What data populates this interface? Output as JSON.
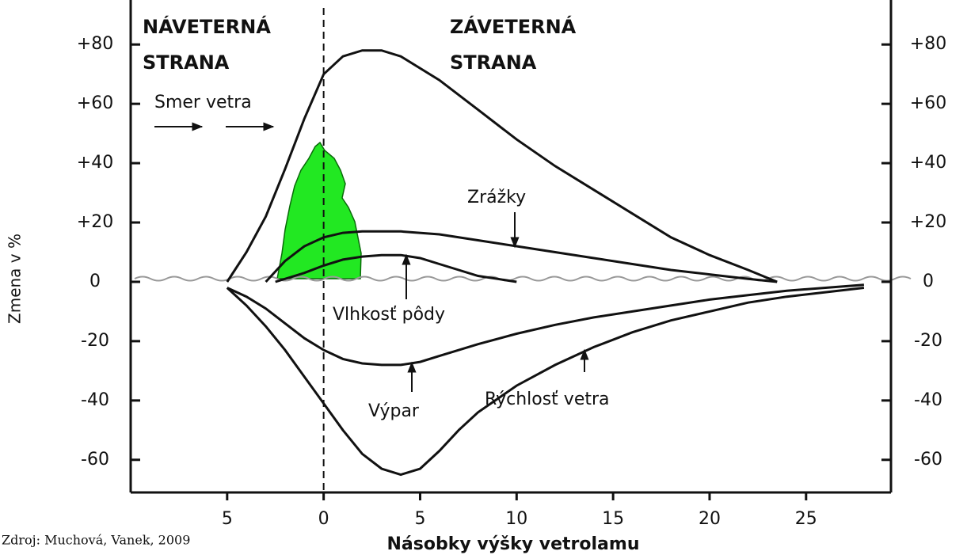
{
  "chart_data": {
    "type": "line",
    "sides": [
      [
        "NÁVETERNÁ",
        "STRANA"
      ],
      [
        "ZÁVETERNÁ",
        "STRANA"
      ]
    ],
    "annotations": [
      "Smer vetra",
      "Zrážky",
      "Vlhkosť pôdy",
      "Výpar",
      "Rýchlosť vetra"
    ],
    "y_label": "Zmena v %",
    "x_label": "Násobky výšky vetrolamu",
    "source": "Zdroj: Muchová, Vanek, 2009",
    "xlim": [
      -10,
      29.4
    ],
    "ylim": [
      -71,
      95
    ],
    "xticks": [
      {
        "value": -5,
        "label": "5"
      },
      0,
      5,
      10,
      15,
      20,
      25
    ],
    "yticks": [
      {
        "value": 80,
        "label": "+80"
      },
      {
        "value": 60,
        "label": "+60"
      },
      {
        "value": 40,
        "label": "+40"
      },
      {
        "value": 20,
        "label": "+20"
      },
      0,
      -20,
      -40,
      -60
    ],
    "y2ticks": [
      {
        "value": 80,
        "label": "+80"
      },
      {
        "value": 60,
        "label": "+60"
      },
      {
        "value": 40,
        "label": "+40"
      },
      {
        "value": 20,
        "label": "+20"
      },
      0,
      -20,
      -40,
      -60
    ],
    "series": [
      {
        "color": "#111111",
        "x": [
          -5,
          -4,
          -3,
          -2,
          -1,
          0,
          1,
          2,
          3,
          4,
          6,
          8,
          10,
          12,
          14,
          16,
          18,
          20,
          22,
          23.5
        ],
        "values": [
          0,
          10,
          22,
          38,
          55,
          70,
          76,
          78,
          78,
          76,
          68,
          58,
          48,
          39,
          31,
          23,
          15,
          9,
          4,
          0
        ]
      },
      {
        "name": "Zrážky",
        "color": "#111111",
        "x": [
          -3,
          -2,
          -1,
          0,
          1,
          2,
          4,
          6,
          8,
          10,
          12,
          14,
          16,
          18,
          20,
          22,
          23.5
        ],
        "values": [
          0,
          7,
          12,
          15,
          16.5,
          17,
          17,
          16,
          14,
          12,
          10,
          8,
          6,
          4,
          2.5,
          1,
          0
        ]
      },
      {
        "name": "Vlhkosť pôdy",
        "color": "#111111",
        "x": [
          -2.5,
          -1,
          0,
          1,
          2,
          3,
          4,
          5,
          6,
          7,
          8,
          9,
          10
        ],
        "values": [
          0,
          3,
          5.5,
          7.5,
          8.5,
          9,
          9,
          8,
          6,
          4,
          2,
          1,
          0
        ]
      },
      {
        "name": "Výpar",
        "color": "#111111",
        "x": [
          -5,
          -4,
          -3,
          -2,
          -1,
          0,
          1,
          2,
          3,
          4,
          5,
          6,
          8,
          10,
          12,
          14,
          16,
          18,
          20,
          22,
          24,
          26,
          28
        ],
        "values": [
          -2,
          -5,
          -9,
          -14,
          -19,
          -23,
          -26,
          -27.5,
          -28,
          -28,
          -27,
          -25,
          -21,
          -17.5,
          -14.5,
          -12,
          -10,
          -8,
          -6,
          -4.5,
          -3,
          -2,
          -1
        ]
      },
      {
        "name": "Rýchlosť vetra",
        "color": "#111111",
        "x": [
          -5,
          -4,
          -3,
          -2,
          -1,
          0,
          1,
          2,
          3,
          4,
          5,
          6,
          7,
          8,
          10,
          12,
          14,
          16,
          18,
          20,
          22,
          24,
          26,
          28
        ],
        "values": [
          -2,
          -8,
          -15,
          -23,
          -32,
          -41,
          -50,
          -58,
          -63,
          -65,
          -63,
          -57,
          -50,
          -44,
          -35,
          -28,
          -22,
          -17,
          -13,
          -10,
          -7,
          -5,
          -3.5,
          -2
        ]
      }
    ]
  }
}
